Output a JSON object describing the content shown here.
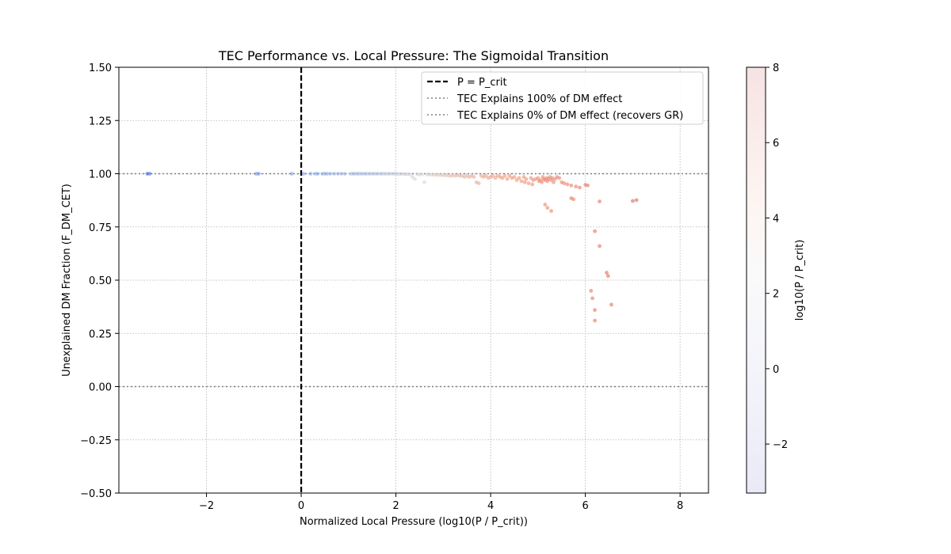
{
  "chart_data": {
    "type": "scatter",
    "title": "TEC Performance vs. Local Pressure: The Sigmoidal Transition",
    "xlabel": "Normalized Local Pressure (log10(P / P_crit))",
    "ylabel": "Unexplained DM Fraction (F_DM_CET)",
    "xlim": [
      -3.85,
      8.6
    ],
    "ylim": [
      -0.5,
      1.5
    ],
    "x_ticks": [
      -2,
      0,
      2,
      4,
      6,
      8
    ],
    "x_tick_labels": [
      "−2",
      "0",
      "2",
      "4",
      "6",
      "8"
    ],
    "y_ticks": [
      -0.5,
      -0.25,
      0.0,
      0.25,
      0.5,
      0.75,
      1.0,
      1.25,
      1.5
    ],
    "y_tick_labels": [
      "−0.50",
      "−0.25",
      "0.00",
      "0.25",
      "0.50",
      "0.75",
      "1.00",
      "1.25",
      "1.50"
    ],
    "grid": true,
    "legend_position": "top-right",
    "legend": [
      {
        "label": "P = P_crit",
        "style": "dashed-black"
      },
      {
        "label": "TEC Explains 100% of DM effect",
        "style": "dotted-gray"
      },
      {
        "label": "TEC Explains 0% of DM effect (recovers GR)",
        "style": "dotted-gray"
      }
    ],
    "reference_lines": {
      "vertical_x": 0,
      "horizontal_y": [
        1.0,
        0.0
      ]
    },
    "colorbar": {
      "label": "log10(P / P_crit)",
      "range": [
        -3.3,
        8.0
      ],
      "ticks": [
        -2,
        0,
        2,
        4,
        6,
        8
      ],
      "tick_labels": [
        "−2",
        "0",
        "2",
        "4",
        "6",
        "8"
      ],
      "colormap": "coolwarm"
    },
    "points": [
      [
        -3.25,
        1.0
      ],
      [
        -3.2,
        1.0
      ],
      [
        -0.95,
        1.0
      ],
      [
        -0.9,
        1.0
      ],
      [
        -0.2,
        1.0
      ],
      [
        0.05,
        1.0
      ],
      [
        0.2,
        1.0
      ],
      [
        0.3,
        1.0
      ],
      [
        0.35,
        1.0
      ],
      [
        0.45,
        1.0
      ],
      [
        0.5,
        1.0
      ],
      [
        0.55,
        1.0
      ],
      [
        0.62,
        1.0
      ],
      [
        0.7,
        1.0
      ],
      [
        0.78,
        1.0
      ],
      [
        0.85,
        1.0
      ],
      [
        0.92,
        1.0
      ],
      [
        1.05,
        1.0
      ],
      [
        1.1,
        1.0
      ],
      [
        1.15,
        1.0
      ],
      [
        1.2,
        1.0
      ],
      [
        1.25,
        1.0
      ],
      [
        1.3,
        1.0
      ],
      [
        1.35,
        1.0
      ],
      [
        1.4,
        1.0
      ],
      [
        1.45,
        1.0
      ],
      [
        1.5,
        1.0
      ],
      [
        1.55,
        1.0
      ],
      [
        1.6,
        1.0
      ],
      [
        1.65,
        1.0
      ],
      [
        1.7,
        1.0
      ],
      [
        1.75,
        1.0
      ],
      [
        1.8,
        1.0
      ],
      [
        1.85,
        1.0
      ],
      [
        1.9,
        1.0
      ],
      [
        1.95,
        1.0
      ],
      [
        2.0,
        1.0
      ],
      [
        2.05,
        0.999
      ],
      [
        2.1,
        0.999
      ],
      [
        2.15,
        0.999
      ],
      [
        2.2,
        0.998
      ],
      [
        2.25,
        0.998
      ],
      [
        2.3,
        0.997
      ],
      [
        2.35,
        0.985
      ],
      [
        2.4,
        0.975
      ],
      [
        2.45,
        0.998
      ],
      [
        2.5,
        0.996
      ],
      [
        2.55,
        0.997
      ],
      [
        2.6,
        0.96
      ],
      [
        2.65,
        0.996
      ],
      [
        2.7,
        0.996
      ],
      [
        2.75,
        0.995
      ],
      [
        2.8,
        0.995
      ],
      [
        2.85,
        0.995
      ],
      [
        2.9,
        0.994
      ],
      [
        2.95,
        0.994
      ],
      [
        3.0,
        0.993
      ],
      [
        3.05,
        0.993
      ],
      [
        3.1,
        0.992
      ],
      [
        3.15,
        0.99
      ],
      [
        3.2,
        0.992
      ],
      [
        3.25,
        0.99
      ],
      [
        3.3,
        0.993
      ],
      [
        3.35,
        0.99
      ],
      [
        3.4,
        0.99
      ],
      [
        3.45,
        0.985
      ],
      [
        3.5,
        0.99
      ],
      [
        3.55,
        0.985
      ],
      [
        3.6,
        0.99
      ],
      [
        3.65,
        0.985
      ],
      [
        3.7,
        0.96
      ],
      [
        3.75,
        0.955
      ],
      [
        3.8,
        0.99
      ],
      [
        3.85,
        0.985
      ],
      [
        3.9,
        0.99
      ],
      [
        3.95,
        0.98
      ],
      [
        4.0,
        0.985
      ],
      [
        4.05,
        0.99
      ],
      [
        4.1,
        0.98
      ],
      [
        4.15,
        0.99
      ],
      [
        4.2,
        0.985
      ],
      [
        4.25,
        0.98
      ],
      [
        4.3,
        0.99
      ],
      [
        4.35,
        0.975
      ],
      [
        4.4,
        0.99
      ],
      [
        4.45,
        0.98
      ],
      [
        4.5,
        0.985
      ],
      [
        4.55,
        0.97
      ],
      [
        4.6,
        0.98
      ],
      [
        4.65,
        0.965
      ],
      [
        4.7,
        0.985
      ],
      [
        4.72,
        0.96
      ],
      [
        4.75,
        0.975
      ],
      [
        4.8,
        0.955
      ],
      [
        4.85,
        0.98
      ],
      [
        4.88,
        0.95
      ],
      [
        4.9,
        0.97
      ],
      [
        4.95,
        0.975
      ],
      [
        5.0,
        0.98
      ],
      [
        5.02,
        0.965
      ],
      [
        5.05,
        0.97
      ],
      [
        5.08,
        0.96
      ],
      [
        5.1,
        0.985
      ],
      [
        5.12,
        0.975
      ],
      [
        5.15,
        0.97
      ],
      [
        5.18,
        0.98
      ],
      [
        5.2,
        0.965
      ],
      [
        5.22,
        0.975
      ],
      [
        5.25,
        0.985
      ],
      [
        5.28,
        0.97
      ],
      [
        5.3,
        0.98
      ],
      [
        5.33,
        0.96
      ],
      [
        5.36,
        0.975
      ],
      [
        5.4,
        0.985
      ],
      [
        5.45,
        0.98
      ],
      [
        5.5,
        0.96
      ],
      [
        5.55,
        0.955
      ],
      [
        5.62,
        0.95
      ],
      [
        5.7,
        0.945
      ],
      [
        5.8,
        0.94
      ],
      [
        5.88,
        0.935
      ],
      [
        6.0,
        0.948
      ],
      [
        6.05,
        0.945
      ],
      [
        5.15,
        0.855
      ],
      [
        5.2,
        0.84
      ],
      [
        5.28,
        0.825
      ],
      [
        5.7,
        0.885
      ],
      [
        5.75,
        0.88
      ],
      [
        6.3,
        0.87
      ],
      [
        7.0,
        0.872
      ],
      [
        7.08,
        0.876
      ],
      [
        6.2,
        0.73
      ],
      [
        6.3,
        0.66
      ],
      [
        6.45,
        0.535
      ],
      [
        6.48,
        0.52
      ],
      [
        6.12,
        0.45
      ],
      [
        6.15,
        0.415
      ],
      [
        6.2,
        0.36
      ],
      [
        6.2,
        0.31
      ],
      [
        6.55,
        0.385
      ]
    ]
  }
}
